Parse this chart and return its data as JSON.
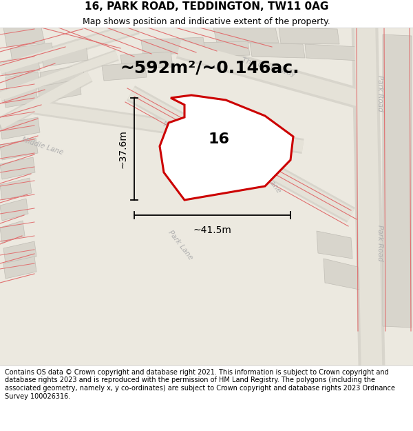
{
  "title": "16, PARK ROAD, TEDDINGTON, TW11 0AG",
  "subtitle": "Map shows position and indicative extent of the property.",
  "area_text": "~592m²/~0.146ac.",
  "label_16": "16",
  "dim_height": "~37.6m",
  "dim_width": "~41.5m",
  "footer": "Contains OS data © Crown copyright and database right 2021. This information is subject to Crown copyright and database rights 2023 and is reproduced with the permission of HM Land Registry. The polygons (including the associated geometry, namely x, y co-ordinates) are subject to Crown copyright and database rights 2023 Ordnance Survey 100026316.",
  "bg_color": "#ece9e0",
  "property_fill": "#ffffff",
  "property_edge": "#cc0000",
  "title_fontsize": 11,
  "subtitle_fontsize": 9,
  "area_fontsize": 18,
  "label_fontsize": 16,
  "dim_fontsize": 10,
  "footer_fontsize": 7
}
